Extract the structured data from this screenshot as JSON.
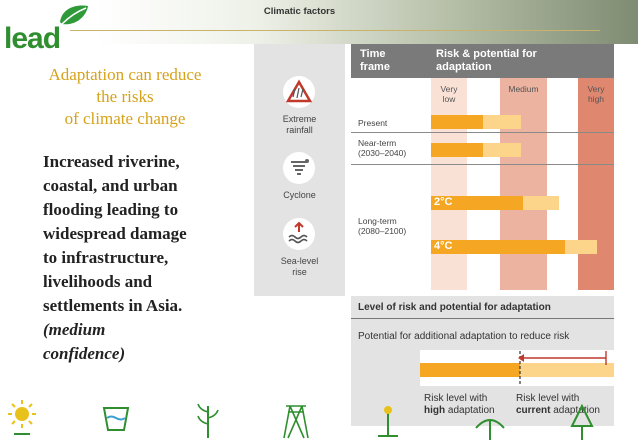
{
  "brand": {
    "logo_text": "lead",
    "color": "#2f8f2f"
  },
  "slide": {
    "subtitle": [
      "Adaptation can reduce",
      "the risks",
      "of climate change"
    ],
    "body": [
      "Increased riverine,",
      "coastal, and urban",
      "flooding leading to",
      "widespread damage",
      "to infrastructure,",
      "livelihoods and",
      "settlements in Asia."
    ],
    "confidence": [
      "(medium",
      "confidence)"
    ]
  },
  "climatic_factors": {
    "title": "Climatic factors",
    "items": [
      {
        "icon": "extreme-rainfall-icon",
        "label": [
          "Extreme",
          "rainfall"
        ]
      },
      {
        "icon": "cyclone-icon",
        "label": [
          "Cyclone"
        ]
      },
      {
        "icon": "sea-level-rise-icon",
        "label": [
          "Sea-level",
          "rise"
        ]
      }
    ]
  },
  "risk_table": {
    "col1_header": [
      "Time",
      "frame"
    ],
    "col2_header": [
      "Risk & potential for",
      "adaptation"
    ],
    "levels": [
      {
        "label": [
          "Very",
          "low"
        ],
        "color": "#f9e1d6"
      },
      {
        "label": [
          "Medium"
        ],
        "color": "#ecb3a0"
      },
      {
        "label": [
          "Very",
          "high"
        ],
        "color": "#e08770"
      }
    ],
    "rows": [
      {
        "label": [
          "Present"
        ]
      },
      {
        "label": [
          "Near-term",
          "(2030–2040)"
        ]
      },
      {
        "label": [
          "Long-term",
          "(2080–2100)"
        ]
      }
    ],
    "scenarios": [
      "2°C",
      "4°C"
    ]
  },
  "legend": {
    "title": "Level of risk and potential for adaptation",
    "subtitle": "Potential for additional adaptation to reduce risk",
    "high_caption": [
      "Risk level with",
      "high adaptation"
    ],
    "current_caption": [
      "Risk level with",
      "current adaptation"
    ],
    "colors": {
      "high": "#f5a623",
      "current": "#fdd58a"
    }
  },
  "footer_icons": [
    "sun-icon",
    "water-icon",
    "wheat-icon",
    "pylon-icon",
    "plant-icon",
    "shade-tree-icon",
    "tree-icon"
  ]
}
